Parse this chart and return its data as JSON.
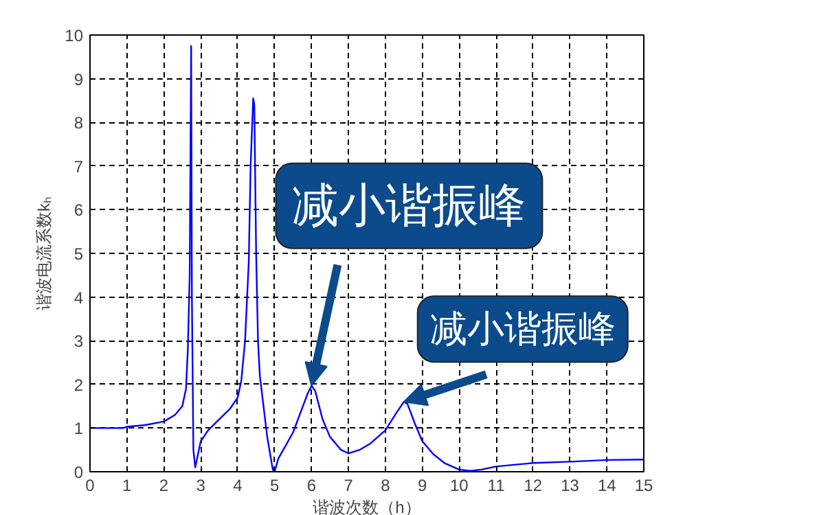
{
  "chart_data": {
    "type": "line",
    "xlabel": "谐波次数（h）",
    "ylabel": "谐波电流系数kₕ",
    "xlim": [
      0,
      15
    ],
    "ylim": [
      0,
      10
    ],
    "xticks": [
      0,
      1,
      2,
      3,
      4,
      5,
      6,
      7,
      8,
      9,
      10,
      11,
      12,
      13,
      14,
      15
    ],
    "yticks": [
      0,
      1,
      2,
      3,
      4,
      5,
      6,
      7,
      8,
      9,
      10
    ],
    "grid": true,
    "line_style": "solid",
    "series": [
      {
        "color": "#0000ff",
        "x": [
          0,
          0.9,
          1,
          1.5,
          2,
          2.3,
          2.5,
          2.6,
          2.65,
          2.7,
          2.72,
          2.74,
          2.76,
          2.8,
          2.85,
          2.9,
          3.0,
          3.2,
          3.5,
          3.8,
          4.0,
          4.1,
          4.2,
          4.3,
          4.35,
          4.42,
          4.45,
          4.5,
          4.55,
          4.6,
          4.8,
          4.95,
          5.0,
          5.1,
          5.3,
          5.5,
          5.7,
          5.9,
          6.0,
          6.1,
          6.3,
          6.5,
          6.8,
          7.0,
          7.3,
          7.6,
          8.0,
          8.3,
          8.5,
          8.6,
          8.8,
          9.0,
          9.3,
          9.6,
          10.0,
          10.3,
          10.6,
          11,
          12,
          13,
          14,
          15
        ],
        "values": [
          1.0,
          1.0,
          1.03,
          1.07,
          1.15,
          1.3,
          1.5,
          1.9,
          2.8,
          4.5,
          7.2,
          9.75,
          4.0,
          0.5,
          0.1,
          0.3,
          0.7,
          0.95,
          1.2,
          1.45,
          1.7,
          2.1,
          3.0,
          4.8,
          7.0,
          8.55,
          8.4,
          5.0,
          3.0,
          2.2,
          0.8,
          0.05,
          0.0,
          0.3,
          0.6,
          0.9,
          1.35,
          1.8,
          1.97,
          1.85,
          1.2,
          0.8,
          0.5,
          0.42,
          0.5,
          0.65,
          0.95,
          1.35,
          1.6,
          1.55,
          1.1,
          0.7,
          0.4,
          0.2,
          0.05,
          0.02,
          0.05,
          0.12,
          0.2,
          0.23,
          0.27,
          0.28
        ]
      }
    ],
    "annotations": [
      {
        "text": "减小谐振峰",
        "x": 6,
        "y": 1.97
      },
      {
        "text": "减小谐振峰",
        "x": 8.5,
        "y": 1.6
      }
    ]
  }
}
